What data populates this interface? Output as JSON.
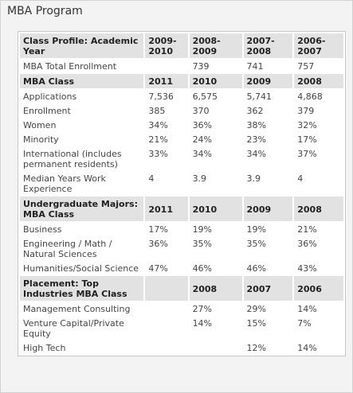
{
  "panel": {
    "title": "MBA Program"
  },
  "profile": {
    "header": {
      "label": "Class Profile: Academic Year",
      "cols": [
        "2009-2010",
        "2008-2009",
        "2007-2008",
        "2006-2007"
      ]
    },
    "rows": [
      {
        "label": "MBA Total Enrollment",
        "values": [
          "",
          "739",
          "741",
          "757"
        ]
      }
    ]
  },
  "mba_class": {
    "header": {
      "label": "MBA Class",
      "cols": [
        "2011",
        "2010",
        "2009",
        "2008"
      ]
    },
    "rows": [
      {
        "label": "Applications",
        "values": [
          "7,536",
          "6,575",
          "5,741",
          "4,868"
        ]
      },
      {
        "label": "Enrollment",
        "values": [
          "385",
          "370",
          "362",
          "379"
        ]
      },
      {
        "label": "Women",
        "values": [
          "34%",
          "36%",
          "38%",
          "32%"
        ]
      },
      {
        "label": "Minority",
        "values": [
          "21%",
          "24%",
          "23%",
          "17%"
        ]
      },
      {
        "label": "International (includes permanent residents)",
        "values": [
          "33%",
          "34%",
          "34%",
          "37%"
        ]
      },
      {
        "label": "Median Years Work Experience",
        "values": [
          "4",
          "3.9",
          "3.9",
          "4"
        ]
      }
    ]
  },
  "majors": {
    "header": {
      "label": "Undergraduate Majors: MBA Class",
      "cols": [
        "2011",
        "2010",
        "2009",
        "2008"
      ]
    },
    "rows": [
      {
        "label": "Business",
        "values": [
          "17%",
          "19%",
          "19%",
          "21%"
        ]
      },
      {
        "label": "Engineering / Math / Natural Sciences",
        "values": [
          "36%",
          "35%",
          "35%",
          "36%"
        ]
      },
      {
        "label": "Humanities/Social Science",
        "values": [
          "47%",
          "46%",
          "46%",
          "43%"
        ]
      }
    ]
  },
  "industries": {
    "header": {
      "label": "Placement: Top Industries MBA Class",
      "cols": [
        "",
        "2008",
        "2007",
        "2006"
      ]
    },
    "rows": [
      {
        "label": "Management Consulting",
        "values": [
          "",
          "27%",
          "29%",
          "14%"
        ]
      },
      {
        "label": "Venture Capital/Private Equity",
        "values": [
          "",
          "14%",
          "15%",
          "7%"
        ]
      },
      {
        "label": "High Tech",
        "values": [
          "",
          "",
          "12%",
          "14%"
        ]
      }
    ]
  }
}
